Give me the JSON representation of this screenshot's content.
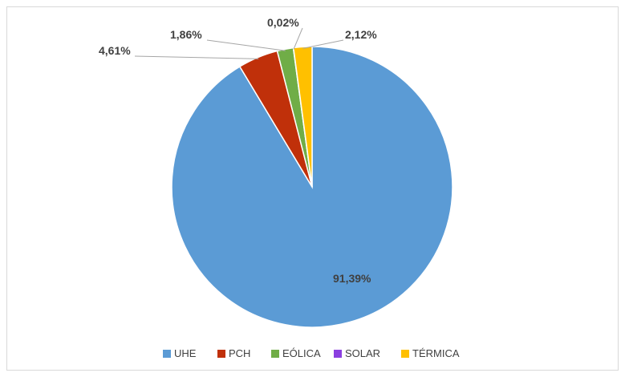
{
  "chart_data": {
    "type": "pie",
    "title": "",
    "slices": [
      {
        "name": "UHE",
        "value": 91.39,
        "label": "91,39%",
        "color": "#5b9bd5"
      },
      {
        "name": "PCH",
        "value": 4.61,
        "label": "4,61%",
        "color": "#c0300a"
      },
      {
        "name": "EÓLICA",
        "value": 1.86,
        "label": "1,86%",
        "color": "#70ad47"
      },
      {
        "name": "SOLAR",
        "value": 0.02,
        "label": "0,02%",
        "color": "#8b3fe0"
      },
      {
        "name": "TÉRMICA",
        "value": 2.12,
        "label": "2,12%",
        "color": "#ffc000"
      }
    ],
    "legend": {
      "placement": "bottom"
    }
  }
}
